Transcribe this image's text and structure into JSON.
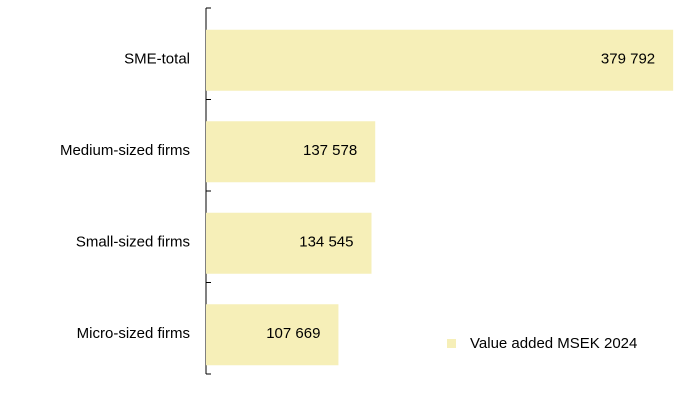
{
  "chart_data": {
    "type": "bar",
    "orientation": "horizontal",
    "categories": [
      "SME-total",
      "Medium-sized firms",
      "Small-sized firms",
      "Micro-sized firms"
    ],
    "series": [
      {
        "name": "Value added MSEK 2024",
        "color": "#f6efb8",
        "values": [
          379792,
          137578,
          134545,
          107669
        ],
        "value_labels": [
          "379 792",
          "137 578",
          "134 545",
          "107 669"
        ]
      }
    ],
    "xlim": [
      0,
      400000
    ],
    "legend": "lower right"
  }
}
